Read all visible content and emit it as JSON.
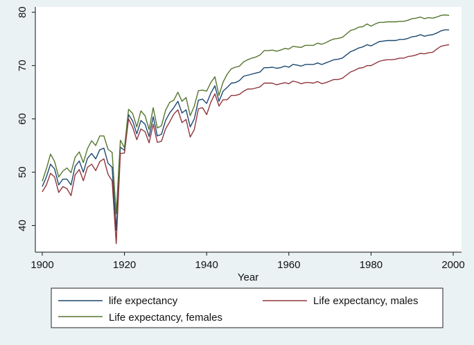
{
  "chart_data": {
    "type": "line",
    "title": "",
    "xlabel": "Year",
    "ylabel": "",
    "xlim": [
      1900,
      2000
    ],
    "ylim": [
      35,
      81
    ],
    "x_ticks": [
      1900,
      1920,
      1940,
      1960,
      1980,
      2000
    ],
    "y_ticks": [
      40,
      50,
      60,
      70,
      80
    ],
    "grid": false,
    "legend_position": "bottom",
    "colors": {
      "plot_bg": "#ffffff",
      "page_bg": "#eaf2f3"
    },
    "x": [
      1900,
      1901,
      1902,
      1903,
      1904,
      1905,
      1906,
      1907,
      1908,
      1909,
      1910,
      1911,
      1912,
      1913,
      1914,
      1915,
      1916,
      1917,
      1918,
      1919,
      1920,
      1921,
      1922,
      1923,
      1924,
      1925,
      1926,
      1927,
      1928,
      1929,
      1930,
      1931,
      1932,
      1933,
      1934,
      1935,
      1936,
      1937,
      1938,
      1939,
      1940,
      1941,
      1942,
      1943,
      1944,
      1945,
      1946,
      1947,
      1948,
      1949,
      1950,
      1951,
      1952,
      1953,
      1954,
      1955,
      1956,
      1957,
      1958,
      1959,
      1960,
      1961,
      1962,
      1963,
      1964,
      1965,
      1966,
      1967,
      1968,
      1969,
      1970,
      1971,
      1972,
      1973,
      1974,
      1975,
      1976,
      1977,
      1978,
      1979,
      1980,
      1981,
      1982,
      1983,
      1984,
      1985,
      1986,
      1987,
      1988,
      1989,
      1990,
      1991,
      1992,
      1993,
      1994,
      1995,
      1996,
      1997,
      1998,
      1999
    ],
    "series": [
      {
        "name": "life expectancy",
        "color": "#1a476f",
        "values": [
          47.3,
          49.1,
          51.5,
          50.6,
          47.6,
          48.7,
          48.7,
          47.6,
          51.1,
          52.1,
          50.0,
          52.6,
          53.5,
          52.5,
          54.2,
          54.5,
          51.7,
          50.9,
          39.1,
          54.7,
          54.1,
          60.8,
          59.6,
          57.2,
          59.7,
          59.0,
          56.7,
          60.4,
          56.8,
          57.1,
          59.7,
          61.1,
          62.1,
          63.3,
          61.1,
          61.7,
          58.5,
          60.0,
          63.5,
          63.7,
          62.9,
          64.8,
          66.2,
          63.3,
          65.2,
          65.9,
          66.7,
          66.8,
          67.2,
          68.0,
          68.2,
          68.4,
          68.6,
          68.8,
          69.6,
          69.6,
          69.7,
          69.5,
          69.6,
          69.9,
          69.7,
          70.2,
          70.1,
          69.9,
          70.2,
          70.2,
          70.2,
          70.5,
          70.2,
          70.5,
          70.8,
          71.1,
          71.2,
          71.4,
          72.0,
          72.6,
          72.9,
          73.3,
          73.5,
          73.9,
          73.7,
          74.1,
          74.5,
          74.6,
          74.7,
          74.7,
          74.7,
          74.9,
          74.9,
          75.1,
          75.4,
          75.5,
          75.8,
          75.5,
          75.7,
          75.8,
          76.1,
          76.5,
          76.7,
          76.7
        ]
      },
      {
        "name": "Life expectancy, males",
        "color": "#90353b",
        "values": [
          46.3,
          47.6,
          49.8,
          49.1,
          46.2,
          47.3,
          46.9,
          45.6,
          49.5,
          50.5,
          48.4,
          50.9,
          51.5,
          50.3,
          52.0,
          52.5,
          49.6,
          48.4,
          36.6,
          53.5,
          53.6,
          60.0,
          58.4,
          56.1,
          58.1,
          57.6,
          55.5,
          59.0,
          55.6,
          55.8,
          58.1,
          59.4,
          60.9,
          61.7,
          59.3,
          59.9,
          56.6,
          58.0,
          61.9,
          62.1,
          60.8,
          63.1,
          64.7,
          62.4,
          63.6,
          63.6,
          64.4,
          64.4,
          64.6,
          65.2,
          65.6,
          65.6,
          65.8,
          66.0,
          66.7,
          66.7,
          66.7,
          66.4,
          66.6,
          66.8,
          66.6,
          67.1,
          66.9,
          66.6,
          66.8,
          66.8,
          66.7,
          67.0,
          66.6,
          66.8,
          67.1,
          67.4,
          67.4,
          67.6,
          68.2,
          68.8,
          69.1,
          69.5,
          69.6,
          70.0,
          70.0,
          70.4,
          70.8,
          71.0,
          71.1,
          71.1,
          71.2,
          71.4,
          71.4,
          71.7,
          71.8,
          72.0,
          72.3,
          72.2,
          72.4,
          72.5,
          73.1,
          73.6,
          73.8,
          73.9
        ]
      },
      {
        "name": "Life expectancy, females",
        "color": "#55752f",
        "values": [
          48.3,
          50.6,
          53.4,
          52.0,
          49.1,
          50.2,
          50.8,
          49.9,
          52.8,
          53.8,
          51.8,
          54.4,
          55.9,
          55.0,
          56.8,
          56.8,
          54.3,
          53.7,
          42.2,
          56.0,
          54.6,
          61.8,
          61.0,
          58.5,
          61.5,
          60.6,
          58.0,
          62.1,
          58.3,
          58.7,
          61.6,
          63.1,
          63.5,
          65.0,
          63.3,
          64.0,
          60.6,
          62.4,
          65.3,
          65.4,
          65.2,
          66.8,
          67.9,
          64.4,
          66.9,
          68.4,
          69.4,
          69.7,
          69.9,
          70.7,
          71.1,
          71.4,
          71.6,
          72.0,
          72.8,
          72.8,
          72.9,
          72.7,
          72.9,
          73.2,
          73.1,
          73.6,
          73.5,
          73.4,
          73.8,
          73.8,
          73.8,
          74.2,
          74.0,
          74.3,
          74.7,
          75.0,
          75.1,
          75.3,
          75.9,
          76.6,
          76.8,
          77.2,
          77.3,
          77.8,
          77.4,
          77.8,
          78.1,
          78.1,
          78.2,
          78.2,
          78.2,
          78.3,
          78.3,
          78.5,
          78.8,
          78.9,
          79.1,
          78.8,
          79.0,
          78.9,
          79.1,
          79.4,
          79.5,
          79.4
        ]
      }
    ]
  }
}
